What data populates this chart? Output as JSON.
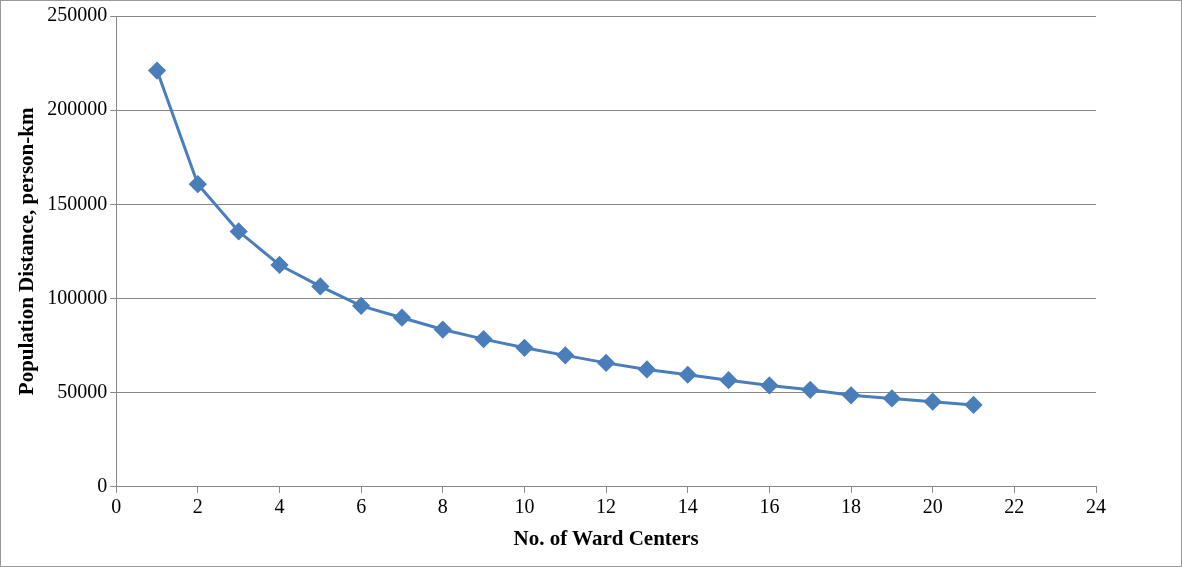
{
  "chart_data": {
    "type": "line",
    "xlabel": "No. of Ward Centers",
    "ylabel": "Population Distance, person-km",
    "x": [
      1,
      2,
      3,
      4,
      5,
      6,
      7,
      8,
      9,
      10,
      11,
      12,
      13,
      14,
      15,
      16,
      17,
      18,
      19,
      20,
      21
    ],
    "series": [
      {
        "color": "#4a7ebb",
        "values": [
          221000,
          160700,
          135600,
          117800,
          106400,
          96100,
          89800,
          83500,
          78400,
          73800,
          69800,
          65800,
          62300,
          59500,
          56600,
          53800,
          51500,
          48600,
          46900,
          45200,
          43500
        ]
      }
    ],
    "xlim": [
      0,
      24
    ],
    "xticks": [
      0,
      2,
      4,
      6,
      8,
      10,
      12,
      14,
      16,
      18,
      20,
      22,
      24
    ],
    "ylim": [
      0,
      250000
    ],
    "yticks": [
      0,
      50000,
      100000,
      150000,
      200000,
      250000
    ],
    "grid": "y",
    "legend": false,
    "marker": "diamond",
    "line_style": "solid"
  }
}
